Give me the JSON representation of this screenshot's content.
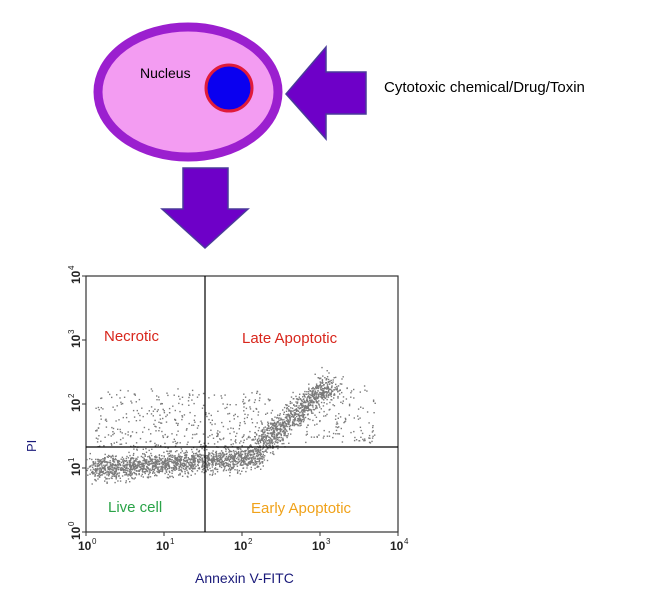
{
  "cell": {
    "nucleus_label": "Nucleus",
    "colors": {
      "membrane": "#9b1fcf",
      "cytoplasm": "#f39cf2",
      "nucleus": "#0a00f0",
      "nucleus_border": "#e01b3a",
      "arrow": "#6e00c8",
      "arrow_border": "#4a3a9a"
    }
  },
  "stimulus_label": "Cytotoxic  chemical/Drug/Toxin",
  "plot": {
    "y_axis_label": "PI",
    "x_axis_label": "Annexin V-FITC",
    "tick_base": "10",
    "tick_exponents": [
      "0",
      "1",
      "2",
      "3",
      "4"
    ],
    "quadrants": {
      "upper_left": "Necrotic",
      "upper_right": "Late Apoptotic",
      "lower_left": "Live cell",
      "lower_right": "Early Apoptotic"
    },
    "quadrant_colors": {
      "necrotic": "#d8261c",
      "late": "#d8261c",
      "live": "#2aa348",
      "early": "#f0a21a"
    }
  },
  "chart_data": {
    "type": "scatter",
    "x_scale": "log",
    "y_scale": "log",
    "xlim": [
      1,
      10000
    ],
    "ylim": [
      1,
      10000
    ],
    "x_gate": 40,
    "y_gate": 20,
    "xlabel": "Annexin V-FITC",
    "ylabel": "PI"
  }
}
